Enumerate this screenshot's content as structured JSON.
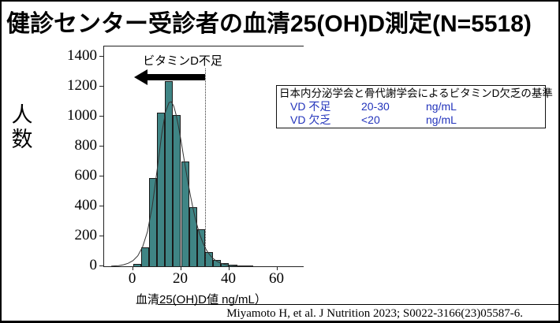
{
  "title": "健診センター受診者の血清25(OH)D測定(N=5518)",
  "y_axis": {
    "label": "人数"
  },
  "x_axis": {
    "label": "血清25(OH)D値 ng/mL）"
  },
  "annotation": {
    "label": "ビタミンD不足",
    "from_x": 30,
    "to_x": 0.5,
    "y_value": 1265
  },
  "reference_line_x": 30,
  "criteria_box": {
    "title": "日本内分泌学会と骨代謝学会によるビタミンD欠乏の基準",
    "rows": [
      {
        "name": "VD 不足",
        "range": "20-30",
        "unit": "ng/mL"
      },
      {
        "name": "VD 欠乏",
        "range": "<20",
        "unit": "ng/mL"
      }
    ]
  },
  "citation": "Miyamoto H, et al.  J Nutrition 2023; S0022-3166(23)05587-6.",
  "colors": {
    "bar_fill": "#3f8585",
    "bar_border": "#1a1a1a",
    "curve": "#333333",
    "accent_blue": "#2233bb",
    "arrow": "#000000"
  },
  "chart_data": {
    "type": "bar",
    "title": "健診センター受診者の血清25(OH)D測定(N=5518)",
    "xlabel": "血清25(OH)D値 (ng/mL)",
    "ylabel": "人数",
    "bins": {
      "start": 0,
      "width": 3.33
    },
    "values": [
      15,
      125,
      590,
      1030,
      1240,
      1010,
      700,
      395,
      250,
      95,
      45,
      22,
      12,
      6,
      3
    ],
    "x_ticks": [
      0,
      20,
      40,
      60
    ],
    "y_ticks": [
      0,
      200,
      400,
      600,
      800,
      1000,
      1200,
      1400
    ],
    "xlim": [
      -12,
      71
    ],
    "ylim": [
      0,
      1470
    ],
    "grid": false,
    "reference_line_x": 30,
    "curve_points": [
      [
        -9,
        1
      ],
      [
        -6,
        4
      ],
      [
        -4,
        10
      ],
      [
        -2,
        20
      ],
      [
        0,
        38
      ],
      [
        2,
        70
      ],
      [
        4,
        130
      ],
      [
        6,
        230
      ],
      [
        8,
        400
      ],
      [
        10,
        640
      ],
      [
        12,
        890
      ],
      [
        13.5,
        1030
      ],
      [
        15,
        1095
      ],
      [
        16,
        1100
      ],
      [
        17,
        1070
      ],
      [
        18,
        1010
      ],
      [
        19,
        930
      ],
      [
        20,
        840
      ],
      [
        21,
        740
      ],
      [
        22,
        645
      ],
      [
        23,
        550
      ],
      [
        24,
        465
      ],
      [
        25,
        385
      ],
      [
        26,
        315
      ],
      [
        27,
        255
      ],
      [
        28,
        205
      ],
      [
        29,
        160
      ],
      [
        30,
        125
      ],
      [
        31,
        97
      ],
      [
        32,
        75
      ],
      [
        33,
        57
      ],
      [
        34,
        43
      ],
      [
        35,
        32
      ],
      [
        36,
        24
      ],
      [
        37,
        18
      ],
      [
        38,
        13
      ],
      [
        40,
        7
      ],
      [
        42,
        4
      ],
      [
        44,
        2
      ],
      [
        47,
        1
      ],
      [
        50,
        0.5
      ]
    ]
  }
}
